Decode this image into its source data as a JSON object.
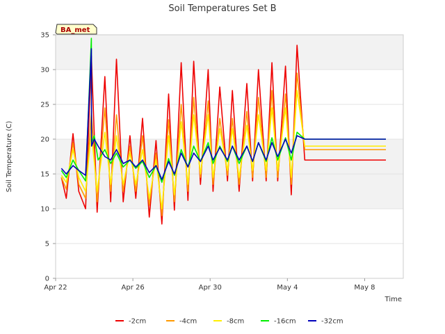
{
  "chart_data": {
    "type": "line",
    "title": "Soil Temperatures Set B",
    "xlabel": "Time",
    "ylabel": "Soil Temperature (C)",
    "annotation": "BA_met",
    "x_ticks": [
      {
        "x": 0,
        "label": "Apr 22"
      },
      {
        "x": 4,
        "label": "Apr 26"
      },
      {
        "x": 8,
        "label": "Apr 30"
      },
      {
        "x": 12,
        "label": "May 4"
      },
      {
        "x": 16,
        "label": "May 8"
      }
    ],
    "y_ticks": [
      0,
      5,
      10,
      15,
      20,
      25,
      30,
      35
    ],
    "xlim": [
      0,
      18
    ],
    "ylim": [
      0,
      35
    ],
    "grid": true,
    "legend_position": "bottom",
    "series": [
      {
        "name": "-2cm",
        "color": "#ee0000",
        "x": [
          0.3,
          0.55,
          0.9,
          1.2,
          1.55,
          1.85,
          2.15,
          2.55,
          2.85,
          3.15,
          3.5,
          3.85,
          4.15,
          4.5,
          4.85,
          5.2,
          5.5,
          5.85,
          6.15,
          6.5,
          6.85,
          7.15,
          7.5,
          7.9,
          8.15,
          8.5,
          8.9,
          9.15,
          9.5,
          9.9,
          10.2,
          10.5,
          10.9,
          11.2,
          11.5,
          11.9,
          12.2,
          12.5,
          12.9,
          13.2,
          13.5,
          13.9,
          14.2,
          14.5,
          14.9,
          15.2,
          15.5,
          15.9,
          16.2,
          16.5,
          16.9,
          17.1
        ],
        "y": [
          14.5,
          11.5,
          20.8,
          12.5,
          10.0,
          32.0,
          9.5,
          29.0,
          11.0,
          31.5,
          11.0,
          20.5,
          11.5,
          23.0,
          8.8,
          19.8,
          7.8,
          26.5,
          9.8,
          31.0,
          11.2,
          31.2,
          13.5,
          30.0,
          12.5,
          27.5,
          14.0,
          27.0,
          12.5,
          28.0,
          14.0,
          30.0,
          14.0,
          31.0,
          14.0,
          30.5,
          12.0,
          33.5,
          17.0,
          17.0,
          17.0,
          17.0,
          17.0,
          17.0,
          17.0,
          17.0,
          17.0,
          17.0,
          17.0,
          17.0,
          17.0,
          17.0
        ]
      },
      {
        "name": "-4cm",
        "color": "#ff9900",
        "x": [
          0.3,
          0.55,
          0.9,
          1.2,
          1.55,
          1.85,
          2.15,
          2.55,
          2.85,
          3.15,
          3.5,
          3.85,
          4.15,
          4.5,
          4.85,
          5.2,
          5.5,
          5.85,
          6.15,
          6.5,
          6.85,
          7.15,
          7.5,
          7.9,
          8.15,
          8.5,
          8.9,
          9.15,
          9.5,
          9.9,
          10.2,
          10.5,
          10.9,
          11.2,
          11.5,
          11.9,
          12.2,
          12.5,
          12.9,
          13.2,
          13.5,
          13.9,
          14.2,
          14.5,
          14.9,
          15.2,
          15.5,
          15.9,
          16.2,
          16.5,
          16.9,
          17.1
        ],
        "y": [
          14.5,
          12.8,
          19.5,
          13.5,
          11.5,
          24.0,
          11.0,
          24.5,
          12.5,
          23.5,
          12.5,
          19.0,
          12.5,
          20.5,
          10.5,
          18.0,
          9.0,
          22.8,
          11.0,
          25.0,
          12.5,
          26.0,
          14.5,
          25.5,
          13.5,
          23.0,
          14.8,
          23.0,
          13.5,
          24.0,
          14.5,
          26.0,
          14.5,
          27.0,
          14.5,
          26.5,
          13.5,
          29.5,
          18.5,
          18.5,
          18.5,
          18.5,
          18.5,
          18.5,
          18.5,
          18.5,
          18.5,
          18.5,
          18.5,
          18.5,
          18.5,
          18.5
        ]
      },
      {
        "name": "-8cm",
        "color": "#ffee00",
        "x": [
          0.3,
          0.55,
          0.9,
          1.2,
          1.55,
          1.85,
          2.15,
          2.55,
          2.85,
          3.15,
          3.5,
          3.85,
          4.15,
          4.5,
          4.85,
          5.2,
          5.5,
          5.85,
          6.15,
          6.5,
          6.85,
          7.15,
          7.5,
          7.9,
          8.15,
          8.5,
          8.9,
          9.15,
          9.5,
          9.9,
          10.2,
          10.5,
          10.9,
          11.2,
          11.5,
          11.9,
          12.2,
          12.5,
          12.9,
          13.2,
          13.5,
          13.9,
          14.2,
          14.5,
          14.9,
          15.2,
          15.5,
          15.9,
          16.2,
          16.5,
          16.9,
          17.1
        ],
        "y": [
          14.8,
          13.8,
          18.5,
          14.5,
          12.5,
          21.0,
          12.5,
          21.0,
          13.5,
          20.5,
          13.5,
          18.0,
          13.5,
          18.5,
          11.5,
          17.0,
          10.0,
          20.5,
          12.0,
          22.5,
          13.5,
          23.5,
          15.0,
          23.5,
          14.5,
          21.5,
          15.5,
          21.5,
          14.5,
          22.0,
          15.5,
          23.5,
          15.5,
          24.5,
          15.5,
          24.5,
          14.5,
          27.0,
          19.0,
          19.0,
          19.0,
          19.0,
          19.0,
          19.0,
          19.0,
          19.0,
          19.0,
          19.0,
          19.0,
          19.0,
          19.0,
          19.0
        ]
      },
      {
        "name": "-16cm",
        "color": "#00ee00",
        "x": [
          0.3,
          0.55,
          0.9,
          1.2,
          1.55,
          1.85,
          1.86,
          2.0,
          2.2,
          2.55,
          2.85,
          3.15,
          3.5,
          3.85,
          4.15,
          4.5,
          4.85,
          5.2,
          5.5,
          5.85,
          6.15,
          6.5,
          6.85,
          7.15,
          7.5,
          7.9,
          8.15,
          8.5,
          8.9,
          9.15,
          9.5,
          9.9,
          10.2,
          10.5,
          10.9,
          11.2,
          11.5,
          11.9,
          12.2,
          12.5,
          12.9,
          13.2,
          13.5,
          13.9,
          14.2,
          14.5,
          14.9,
          15.2,
          15.5,
          15.9,
          16.2,
          16.5,
          16.9,
          17.1
        ],
        "y": [
          15.5,
          14.5,
          17.0,
          15.5,
          14.0,
          34.5,
          19.5,
          20.5,
          17.0,
          18.5,
          16.5,
          18.0,
          16.0,
          17.0,
          15.8,
          16.8,
          14.5,
          16.2,
          13.8,
          17.2,
          14.8,
          18.5,
          16.0,
          19.0,
          16.8,
          19.5,
          16.5,
          19.0,
          16.8,
          19.0,
          16.5,
          19.0,
          16.8,
          19.5,
          16.8,
          20.2,
          17.0,
          20.2,
          17.0,
          21.0,
          20.0,
          20.0,
          20.0,
          20.0,
          20.0,
          20.0,
          20.0,
          20.0,
          20.0,
          20.0,
          20.0,
          20.0,
          20.0,
          20.0
        ]
      },
      {
        "name": "-32cm",
        "color": "#0000bb",
        "x": [
          0.3,
          0.55,
          0.9,
          1.2,
          1.55,
          1.85,
          1.86,
          2.0,
          2.2,
          2.55,
          2.85,
          3.15,
          3.5,
          3.85,
          4.15,
          4.5,
          4.85,
          5.2,
          5.5,
          5.85,
          6.15,
          6.5,
          6.85,
          7.15,
          7.5,
          7.9,
          8.15,
          8.5,
          8.9,
          9.15,
          9.5,
          9.9,
          10.2,
          10.5,
          10.9,
          11.2,
          11.5,
          11.9,
          12.2,
          12.5,
          12.9,
          13.2,
          13.5,
          13.9,
          14.2,
          14.5,
          14.9,
          15.2,
          15.5,
          15.9,
          16.2,
          16.5,
          16.9,
          17.1
        ],
        "y": [
          15.8,
          15.0,
          16.2,
          15.5,
          14.8,
          33.0,
          19.0,
          20.0,
          19.0,
          17.5,
          17.0,
          18.5,
          16.5,
          17.0,
          16.0,
          17.0,
          15.2,
          16.2,
          14.2,
          16.8,
          15.0,
          18.0,
          16.0,
          18.0,
          16.8,
          19.0,
          17.0,
          18.8,
          17.0,
          19.0,
          17.0,
          19.0,
          16.8,
          19.5,
          17.0,
          19.5,
          17.5,
          20.0,
          18.0,
          20.5,
          20.0,
          20.0,
          20.0,
          20.0,
          20.0,
          20.0,
          20.0,
          20.0,
          20.0,
          20.0,
          20.0,
          20.0,
          20.0,
          20.0
        ]
      }
    ]
  }
}
